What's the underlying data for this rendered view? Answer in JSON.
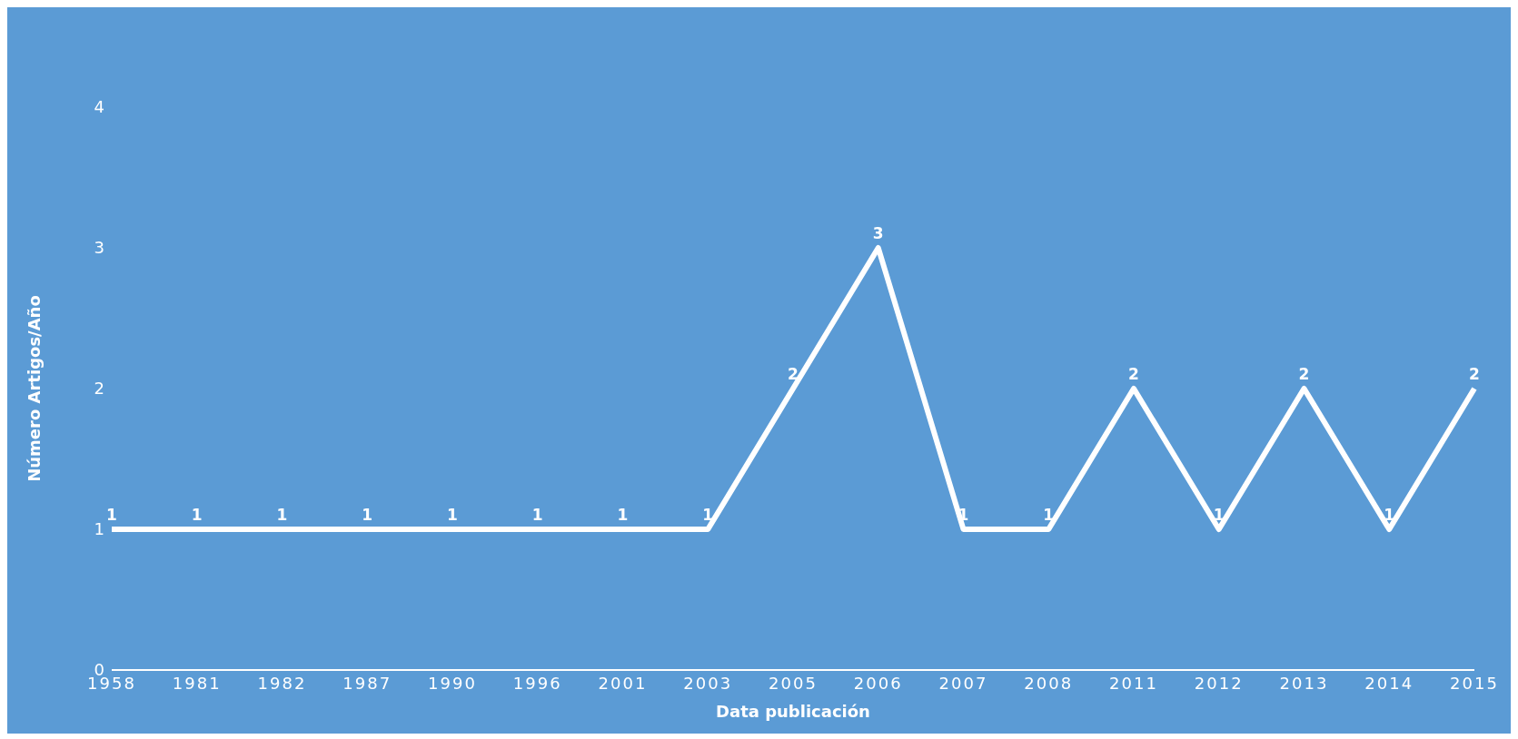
{
  "chart_data": {
    "type": "line",
    "xlabel": "Data publicación",
    "ylabel": "Número  Artigos/Año",
    "categories": [
      "1958",
      "1981",
      "1982",
      "1987",
      "1990",
      "1996",
      "2001",
      "2003",
      "2005",
      "2006",
      "2007",
      "2008",
      "2011",
      "2012",
      "2013",
      "2014",
      "2015"
    ],
    "series": [
      {
        "color": "#ffffff",
        "values": [
          1,
          1,
          1,
          1,
          1,
          1,
          1,
          1,
          2,
          3,
          1,
          1,
          2,
          1,
          2,
          1,
          2
        ]
      }
    ],
    "ylim": [
      0,
      4
    ],
    "yticks": [
      0,
      1,
      2,
      3,
      4
    ],
    "grid": false,
    "legend": false,
    "marker": "none",
    "line_style": "solid",
    "data_labels": true
  }
}
